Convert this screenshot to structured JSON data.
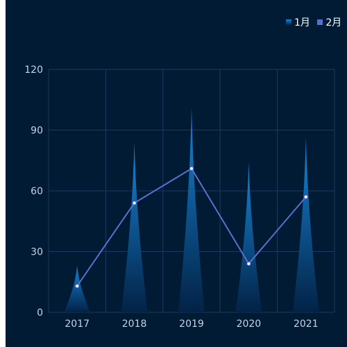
{
  "chart_data": {
    "type": "bar",
    "categories": [
      "2017",
      "2018",
      "2019",
      "2020",
      "2021"
    ],
    "series": [
      {
        "name": "1月",
        "type": "bar",
        "shape": "pictorial-triangle",
        "values": [
          23,
          84,
          101,
          74,
          86
        ],
        "color": "#1686d8",
        "color_end": "#032246"
      },
      {
        "name": "2月",
        "type": "line",
        "values": [
          13,
          54,
          71,
          24,
          57
        ],
        "color": "#5a6fd0"
      }
    ],
    "ylim": [
      0,
      120
    ],
    "yticks": [
      0,
      30,
      60,
      90,
      120
    ],
    "grid": true,
    "legend": "top-right",
    "title": "",
    "xlabel": "",
    "ylabel": "",
    "colors": {
      "background": "#001b33",
      "grid": "#1b3a63",
      "axis_text": "#c5d3e8"
    }
  }
}
